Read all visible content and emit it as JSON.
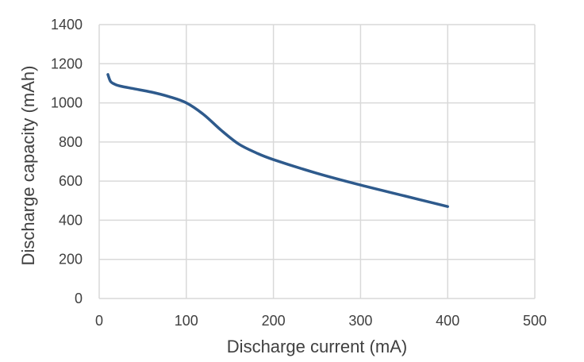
{
  "chart_data": {
    "type": "line",
    "xlabel": "Discharge current (mA)",
    "ylabel": "Discharge capacity (mAh)",
    "xlim": [
      0,
      500
    ],
    "ylim": [
      0,
      1400
    ],
    "xticks": [
      0,
      100,
      200,
      300,
      400,
      500
    ],
    "yticks": [
      0,
      200,
      400,
      600,
      800,
      1000,
      1200,
      1400
    ],
    "grid": true,
    "legend": "none",
    "series": [
      {
        "color": "#2e5a8c",
        "x": [
          10,
          13,
          18,
          25,
          40,
          60,
          80,
          100,
          120,
          140,
          160,
          180,
          200,
          250,
          300,
          350,
          400
        ],
        "y": [
          1145,
          1110,
          1095,
          1085,
          1072,
          1055,
          1032,
          1000,
          940,
          860,
          790,
          745,
          710,
          640,
          580,
          525,
          470
        ]
      }
    ]
  }
}
